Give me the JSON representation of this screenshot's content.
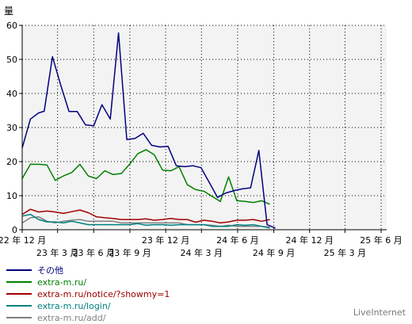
{
  "chart_data": {
    "type": "line",
    "ylabel": "量",
    "ylim": [
      0,
      60
    ],
    "yticks": [
      0,
      10,
      20,
      30,
      40,
      50,
      60
    ],
    "xlim": [
      "2022-12-01",
      "2025-06-15"
    ],
    "x_ticks_top": [
      {
        "date": "2022-12-01",
        "label": "22 年 12 月"
      },
      {
        "date": "2023-12-01",
        "label": "23 年 12 月"
      },
      {
        "date": "2024-06-01",
        "label": "24 年 6 月"
      },
      {
        "date": "2024-12-01",
        "label": "24 年 12 月"
      },
      {
        "date": "2025-06-01",
        "label": "25 年 6 月"
      }
    ],
    "x_ticks_bottom": [
      {
        "date": "2023-03-01",
        "label": "23 年 3 月"
      },
      {
        "date": "2023-06-01",
        "label": "23 年 6 月"
      },
      {
        "date": "2023-09-01",
        "label": "23 年 9 月"
      },
      {
        "date": "2024-03-01",
        "label": "24 年 3 月"
      },
      {
        "date": "2024-09-01",
        "label": "24 年 9 月"
      },
      {
        "date": "2025-03-01",
        "label": "25 年 3 月"
      }
    ],
    "x_gridlines": [
      "2022-12-01",
      "2023-03-01",
      "2023-06-01",
      "2023-09-01",
      "2023-12-01",
      "2024-03-01",
      "2024-06-01",
      "2024-09-01",
      "2024-12-01",
      "2025-03-01",
      "2025-06-01"
    ],
    "grid": true,
    "series": [
      {
        "name": "その他",
        "color": "#000080",
        "points": [
          [
            "2022-12-01",
            24
          ],
          [
            "2022-12-22",
            32.5
          ],
          [
            "2023-01-12",
            34.3
          ],
          [
            "2023-01-26",
            34.8
          ],
          [
            "2023-02-16",
            50.8
          ],
          [
            "2023-03-09",
            42.5
          ],
          [
            "2023-03-30",
            34.7
          ],
          [
            "2023-04-20",
            34.7
          ],
          [
            "2023-05-11",
            30.8
          ],
          [
            "2023-06-01",
            30.5
          ],
          [
            "2023-06-22",
            36.7
          ],
          [
            "2023-07-13",
            32.5
          ],
          [
            "2023-08-03",
            57.8
          ],
          [
            "2023-08-24",
            26.5
          ],
          [
            "2023-09-14",
            26.8
          ],
          [
            "2023-10-05",
            28.3
          ],
          [
            "2023-10-26",
            24.8
          ],
          [
            "2023-11-16",
            24.3
          ],
          [
            "2023-12-07",
            24.5
          ],
          [
            "2023-12-28",
            18.8
          ],
          [
            "2024-01-18",
            18.5
          ],
          [
            "2024-02-08",
            18.8
          ],
          [
            "2024-02-29",
            18.2
          ],
          [
            "2024-04-11",
            9.5
          ],
          [
            "2024-05-02",
            10.8
          ],
          [
            "2024-05-23",
            11.5
          ],
          [
            "2024-06-13",
            12
          ],
          [
            "2024-07-04",
            12.3
          ],
          [
            "2024-07-25",
            23.3
          ],
          [
            "2024-08-15",
            1.5
          ],
          [
            "2024-09-05",
            0.5
          ]
        ]
      },
      {
        "name": "extra-m.ru/",
        "color": "#008000",
        "points": [
          [
            "2022-12-01",
            15
          ],
          [
            "2022-12-22",
            19.2
          ],
          [
            "2023-01-12",
            19.2
          ],
          [
            "2023-02-02",
            19
          ],
          [
            "2023-02-23",
            14.5
          ],
          [
            "2023-03-16",
            15.8
          ],
          [
            "2023-04-06",
            16.8
          ],
          [
            "2023-04-27",
            19.2
          ],
          [
            "2023-05-18",
            15.8
          ],
          [
            "2023-06-08",
            15
          ],
          [
            "2023-06-29",
            17.3
          ],
          [
            "2023-07-20",
            16.2
          ],
          [
            "2023-08-10",
            16.5
          ],
          [
            "2023-08-31",
            19.2
          ],
          [
            "2023-09-21",
            22.3
          ],
          [
            "2023-10-12",
            23.5
          ],
          [
            "2023-11-02",
            22
          ],
          [
            "2023-11-23",
            17.5
          ],
          [
            "2023-12-14",
            17.3
          ],
          [
            "2024-01-04",
            18.5
          ],
          [
            "2024-01-25",
            13.2
          ],
          [
            "2024-02-15",
            11.8
          ],
          [
            "2024-03-07",
            11.3
          ],
          [
            "2024-03-28",
            9.8
          ],
          [
            "2024-04-18",
            8.3
          ],
          [
            "2024-05-09",
            15.5
          ],
          [
            "2024-05-30",
            8.5
          ],
          [
            "2024-06-20",
            8.3
          ],
          [
            "2024-07-11",
            8
          ],
          [
            "2024-08-01",
            8.5
          ],
          [
            "2024-08-22",
            7.5
          ]
        ]
      },
      {
        "name": "extra-m.ru/notice/?showmy=1",
        "color": "#a00000",
        "points": [
          [
            "2022-12-01",
            4.5
          ],
          [
            "2022-12-22",
            6
          ],
          [
            "2023-01-12",
            5.2
          ],
          [
            "2023-02-02",
            5.5
          ],
          [
            "2023-02-23",
            5.2
          ],
          [
            "2023-03-16",
            4.8
          ],
          [
            "2023-04-06",
            5.3
          ],
          [
            "2023-04-27",
            5.8
          ],
          [
            "2023-05-18",
            5
          ],
          [
            "2023-06-08",
            3.8
          ],
          [
            "2023-06-29",
            3.5
          ],
          [
            "2023-07-20",
            3.3
          ],
          [
            "2023-08-10",
            3
          ],
          [
            "2023-08-31",
            3
          ],
          [
            "2023-09-21",
            3
          ],
          [
            "2023-10-12",
            3.2
          ],
          [
            "2023-11-02",
            2.8
          ],
          [
            "2023-11-23",
            3
          ],
          [
            "2023-12-14",
            3.3
          ],
          [
            "2024-01-04",
            3
          ],
          [
            "2024-01-25",
            3
          ],
          [
            "2024-02-15",
            2.2
          ],
          [
            "2024-03-07",
            2.8
          ],
          [
            "2024-03-28",
            2.5
          ],
          [
            "2024-04-18",
            2
          ],
          [
            "2024-05-09",
            2.3
          ],
          [
            "2024-05-30",
            2.8
          ],
          [
            "2024-06-20",
            2.8
          ],
          [
            "2024-07-11",
            3
          ],
          [
            "2024-08-01",
            2.5
          ],
          [
            "2024-08-22",
            3
          ]
        ]
      },
      {
        "name": "extra-m.ru/login/",
        "color": "#008080",
        "points": [
          [
            "2022-12-01",
            4
          ],
          [
            "2022-12-22",
            4.5
          ],
          [
            "2023-01-12",
            3
          ],
          [
            "2023-02-02",
            2.3
          ],
          [
            "2023-02-23",
            2.3
          ],
          [
            "2023-03-16",
            2
          ],
          [
            "2023-04-06",
            2.5
          ],
          [
            "2023-04-27",
            2
          ],
          [
            "2023-05-18",
            1.5
          ],
          [
            "2023-06-08",
            1.5
          ],
          [
            "2023-06-29",
            1.5
          ],
          [
            "2023-07-20",
            1.5
          ],
          [
            "2023-08-10",
            1.5
          ],
          [
            "2023-08-31",
            1.5
          ],
          [
            "2023-09-21",
            1.8
          ],
          [
            "2023-10-12",
            1.3
          ],
          [
            "2023-11-02",
            1.5
          ],
          [
            "2023-11-23",
            1.5
          ],
          [
            "2023-12-14",
            1.3
          ],
          [
            "2024-01-04",
            1.5
          ],
          [
            "2024-01-25",
            1.5
          ],
          [
            "2024-02-15",
            1.5
          ],
          [
            "2024-03-07",
            1.5
          ],
          [
            "2024-03-28",
            1
          ],
          [
            "2024-04-18",
            1
          ],
          [
            "2024-05-09",
            1
          ],
          [
            "2024-05-30",
            1.5
          ],
          [
            "2024-06-20",
            1.3
          ],
          [
            "2024-07-11",
            1.5
          ],
          [
            "2024-08-01",
            1
          ],
          [
            "2024-08-22",
            0.5
          ]
        ]
      },
      {
        "name": "extra-m.ru/add/",
        "color": "#808080",
        "points": [
          [
            "2022-12-01",
            2
          ],
          [
            "2022-12-22",
            3.5
          ],
          [
            "2023-01-12",
            3.8
          ],
          [
            "2023-02-02",
            2.5
          ],
          [
            "2023-02-23",
            2
          ],
          [
            "2023-03-16",
            2.5
          ],
          [
            "2023-04-06",
            2.8
          ],
          [
            "2023-04-27",
            3
          ],
          [
            "2023-05-18",
            2.5
          ],
          [
            "2023-06-08",
            2.5
          ],
          [
            "2023-06-29",
            2.5
          ],
          [
            "2023-07-20",
            2.5
          ],
          [
            "2023-08-10",
            2
          ],
          [
            "2023-08-31",
            2
          ],
          [
            "2023-09-21",
            2
          ],
          [
            "2023-10-12",
            2
          ],
          [
            "2023-11-02",
            2
          ],
          [
            "2023-11-23",
            2
          ],
          [
            "2023-12-14",
            2
          ],
          [
            "2024-01-04",
            2
          ],
          [
            "2024-01-25",
            1.5
          ],
          [
            "2024-02-15",
            1.5
          ],
          [
            "2024-03-07",
            1.5
          ],
          [
            "2024-03-28",
            1.3
          ],
          [
            "2024-04-18",
            1
          ],
          [
            "2024-05-09",
            1.3
          ],
          [
            "2024-05-30",
            1
          ],
          [
            "2024-06-20",
            1
          ],
          [
            "2024-07-11",
            1
          ],
          [
            "2024-08-01",
            1
          ],
          [
            "2024-08-22",
            0.8
          ]
        ]
      }
    ]
  },
  "legend": [
    {
      "label": "その他",
      "color": "#000080"
    },
    {
      "label": "extra-m.ru/",
      "color": "#008000"
    },
    {
      "label": "extra-m.ru/notice/?showmy=1",
      "color": "#a00000"
    },
    {
      "label": "extra-m.ru/login/",
      "color": "#008080"
    },
    {
      "label": "extra-m.ru/add/",
      "color": "#808080"
    }
  ],
  "watermark": "LiveInternet"
}
